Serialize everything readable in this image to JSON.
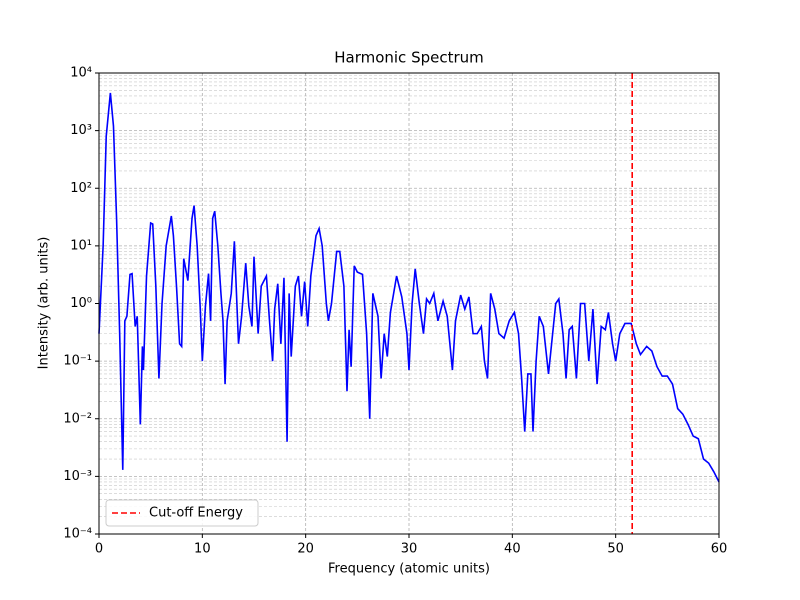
{
  "chart_data": {
    "type": "line",
    "title": "Harmonic Spectrum",
    "x_label": "Frequency (atomic units)",
    "y_label": "Intensity (arb. units)",
    "log_y": true,
    "grid": true,
    "minor_grid": true,
    "legend_loc": "lower left",
    "x": [
      0,
      0.4,
      0.7,
      1.1,
      1.4,
      1.7,
      2.0,
      2.3,
      2.5,
      2.7,
      3.0,
      3.2,
      3.5,
      3.7,
      4.0,
      4.2,
      4.3,
      4.6,
      5.0,
      5.2,
      5.5,
      5.8,
      6.1,
      6.5,
      7.0,
      7.2,
      7.5,
      7.8,
      8.0,
      8.2,
      8.6,
      9.0,
      9.2,
      9.5,
      9.8,
      10.0,
      10.3,
      10.6,
      10.8,
      11.0,
      11.2,
      11.5,
      11.8,
      12.0,
      12.2,
      12.4,
      12.8,
      13.1,
      13.5,
      13.8,
      14.2,
      14.5,
      14.8,
      15.0,
      15.4,
      15.7,
      16.2,
      16.5,
      16.8,
      17.0,
      17.3,
      17.6,
      17.9,
      18.2,
      18.4,
      18.6,
      19.0,
      19.3,
      19.6,
      19.9,
      20.2,
      20.5,
      21.0,
      21.3,
      21.6,
      22.0,
      22.2,
      22.5,
      23.0,
      23.3,
      23.7,
      24.0,
      24.2,
      24.4,
      24.7,
      25.0,
      25.5,
      25.9,
      26.2,
      26.5,
      27.0,
      27.3,
      27.6,
      27.9,
      28.2,
      28.8,
      29.3,
      29.8,
      30.0,
      30.3,
      30.6,
      31.0,
      31.4,
      31.7,
      32.0,
      32.4,
      32.8,
      33.3,
      33.7,
      34.2,
      34.5,
      35.0,
      35.4,
      35.8,
      36.2,
      36.6,
      37.0,
      37.3,
      37.6,
      37.9,
      38.3,
      38.7,
      39.2,
      39.7,
      40.2,
      40.6,
      40.9,
      41.2,
      41.5,
      41.8,
      42.0,
      42.3,
      42.6,
      43.0,
      43.5,
      43.8,
      44.2,
      44.5,
      44.9,
      45.2,
      45.5,
      45.8,
      46.2,
      46.6,
      47.0,
      47.4,
      47.8,
      48.2,
      48.6,
      49.0,
      49.3,
      49.7,
      50.0,
      50.4,
      50.9,
      51.5,
      52.0,
      52.4,
      53.0,
      53.5,
      54.0,
      54.5,
      55.0,
      55.5,
      56.0,
      56.5,
      57.0,
      57.5,
      58.0,
      58.5,
      59.0,
      59.5,
      60.0
    ],
    "series": [
      {
        "color": "#0000ff",
        "values": [
          0.3,
          10,
          800,
          4500,
          1200,
          30,
          0.3,
          0.0013,
          0.5,
          0.6,
          3.2,
          3.3,
          0.4,
          0.6,
          0.008,
          0.18,
          0.07,
          3,
          25,
          24,
          2,
          0.05,
          1,
          10,
          33,
          15,
          2,
          0.2,
          0.18,
          6,
          2.5,
          30,
          50,
          10,
          0.8,
          0.1,
          0.9,
          3.3,
          0.5,
          30,
          40,
          10,
          1.5,
          0.5,
          0.04,
          0.5,
          1.5,
          12,
          0.2,
          0.6,
          5,
          0.9,
          0.4,
          6.5,
          0.3,
          2,
          3,
          0.5,
          0.1,
          0.8,
          2.2,
          0.2,
          2.8,
          0.004,
          1.5,
          0.12,
          2,
          3,
          0.6,
          2.4,
          0.4,
          3,
          15,
          20,
          10,
          1,
          0.5,
          1,
          8,
          8,
          2,
          0.03,
          0.35,
          0.08,
          4.5,
          3.5,
          3.2,
          0.3,
          0.01,
          1.5,
          0.6,
          0.05,
          0.3,
          0.12,
          0.7,
          3,
          1.3,
          0.3,
          0.07,
          1,
          4,
          1,
          0.3,
          1.2,
          1,
          1.5,
          0.5,
          1.1,
          0.6,
          0.07,
          0.5,
          1.4,
          0.8,
          1.3,
          0.3,
          0.3,
          0.4,
          0.1,
          0.05,
          1.5,
          0.8,
          0.3,
          0.25,
          0.5,
          0.7,
          0.3,
          0.05,
          0.006,
          0.06,
          0.06,
          0.006,
          0.1,
          0.6,
          0.4,
          0.06,
          0.2,
          1,
          1.2,
          0.3,
          0.05,
          0.35,
          0.4,
          0.05,
          1,
          1,
          0.1,
          0.8,
          0.04,
          0.4,
          0.35,
          0.7,
          0.2,
          0.1,
          0.3,
          0.45,
          0.45,
          0.2,
          0.13,
          0.18,
          0.15,
          0.08,
          0.055,
          0.055,
          0.04,
          0.015,
          0.012,
          0.008,
          0.005,
          0.0045,
          0.002,
          0.0017,
          0.0012,
          0.0008
        ]
      }
    ],
    "cutoff": {
      "label": "Cut-off Energy",
      "x": 51.6,
      "color": "#ff0000"
    },
    "xlim": [
      0,
      60
    ],
    "xticks": [
      0,
      10,
      20,
      30,
      40,
      50,
      60
    ],
    "ylim": [
      0.0001,
      10000
    ],
    "yticks": [
      {
        "value": 0.0001,
        "label": "10⁻⁴"
      },
      {
        "value": 0.001,
        "label": "10⁻³"
      },
      {
        "value": 0.01,
        "label": "10⁻²"
      },
      {
        "value": 0.1,
        "label": "10⁻¹"
      },
      {
        "value": 1,
        "label": "10⁰"
      },
      {
        "value": 10,
        "label": "10¹"
      },
      {
        "value": 100,
        "label": "10²"
      },
      {
        "value": 1000,
        "label": "10³"
      },
      {
        "value": 10000,
        "label": "10⁴"
      }
    ]
  }
}
